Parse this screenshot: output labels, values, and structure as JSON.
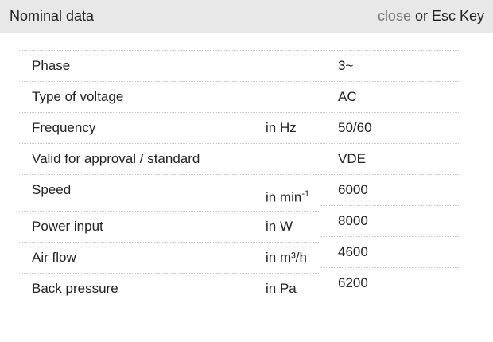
{
  "header": {
    "title": "Nominal data",
    "close": "close",
    "hint": " or Esc Key"
  },
  "table": {
    "rows": [
      {
        "label": "Phase"
      },
      {
        "label": "Type of voltage"
      },
      {
        "label": "Frequency",
        "unit": "in Hz"
      },
      {
        "label": "Valid for approval / standard"
      },
      {
        "label": "Speed",
        "unit": "in min",
        "unit_sup": "-1"
      },
      {
        "label": "Power input",
        "unit": "in W"
      },
      {
        "label": "Air flow",
        "unit": "in m³/h"
      },
      {
        "label": "Back pressure",
        "unit": "in Pa"
      }
    ],
    "values": [
      "3~",
      "AC",
      "50/60",
      "VDE",
      "6000",
      "8000",
      "4600",
      "6200"
    ]
  }
}
